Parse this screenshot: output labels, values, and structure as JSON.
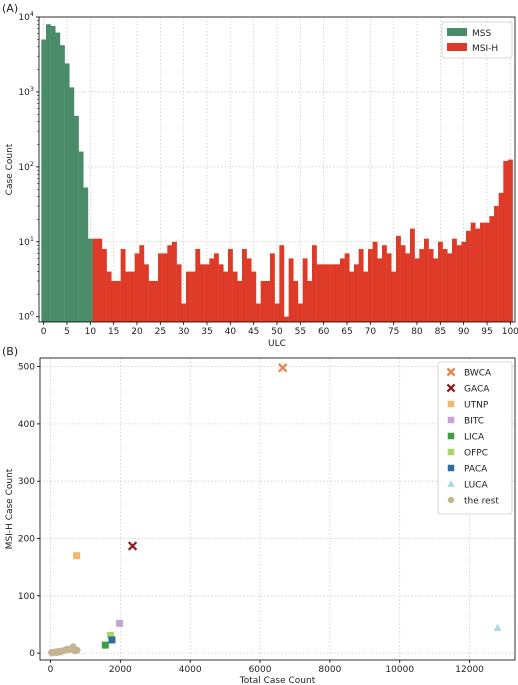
{
  "panels": {
    "a_label": "(A)",
    "b_label": "(B)"
  },
  "colors": {
    "mss": "#4a8c6a",
    "msih": "#dd3a28",
    "grid": "#cccccc"
  },
  "chart_data": [
    {
      "type": "bar",
      "panel": "(A)",
      "xlabel": "ULC",
      "ylabel": "Case Count",
      "yscale": "log",
      "ylim": [
        0.85,
        10000
      ],
      "xlim": [
        -1,
        101
      ],
      "x_ticks": [
        "0",
        "5",
        "10",
        "15",
        "20",
        "25",
        "30",
        "35",
        "40",
        "45",
        "50",
        "55",
        "60",
        "65",
        "70",
        "75",
        "80",
        "85",
        "90",
        "95",
        "100"
      ],
      "y_ticks": [
        "10^0",
        "10^1",
        "10^2",
        "10^3",
        "10^4"
      ],
      "grid": true,
      "legend_position": "top-right",
      "series": [
        {
          "name": "MSS",
          "color": "#4a8c6a",
          "x": [
            0,
            1,
            2,
            3,
            4,
            5,
            6,
            7,
            8,
            9,
            10
          ],
          "values": [
            5000,
            8000,
            7600,
            6200,
            4200,
            2400,
            1150,
            480,
            160,
            53,
            11
          ]
        },
        {
          "name": "MSI-H",
          "color": "#dd3a28",
          "x": [
            11,
            12,
            13,
            14,
            15,
            16,
            17,
            18,
            19,
            20,
            21,
            22,
            23,
            24,
            25,
            26,
            27,
            28,
            29,
            30,
            31,
            32,
            33,
            34,
            35,
            36,
            37,
            38,
            39,
            40,
            41,
            42,
            43,
            44,
            45,
            46,
            47,
            48,
            49,
            50,
            51,
            52,
            53,
            54,
            55,
            56,
            57,
            58,
            59,
            60,
            61,
            62,
            63,
            64,
            65,
            66,
            67,
            68,
            69,
            70,
            71,
            72,
            73,
            74,
            75,
            76,
            77,
            78,
            79,
            80,
            81,
            82,
            83,
            84,
            85,
            86,
            87,
            88,
            89,
            90,
            91,
            92,
            93,
            94,
            95,
            96,
            97,
            98,
            99,
            100
          ],
          "values": [
            11,
            11,
            8,
            4,
            3,
            3,
            8,
            4,
            4,
            7,
            9,
            5,
            3,
            3,
            7,
            7,
            9,
            10,
            5,
            1.5,
            4,
            4,
            8,
            5,
            5,
            6,
            7,
            5,
            4,
            8,
            4,
            3,
            8,
            6,
            4,
            1.5,
            3,
            3,
            7,
            1.5,
            9,
            1,
            6,
            3,
            1.5,
            6,
            3,
            9,
            5,
            5,
            5,
            5,
            5,
            6,
            7,
            4,
            5,
            8,
            4,
            8,
            10,
            6,
            9,
            7,
            4,
            12,
            9,
            7,
            15,
            6,
            8,
            11,
            8,
            6,
            10,
            8,
            7,
            11,
            9,
            10,
            14,
            18,
            15,
            18,
            18,
            22,
            30,
            45,
            120,
            125
          ]
        }
      ]
    },
    {
      "type": "scatter",
      "panel": "(B)",
      "xlabel": "Total Case Count",
      "ylabel": "MSI-H Case Count",
      "xlim": [
        -300,
        13300
      ],
      "ylim": [
        -12,
        515
      ],
      "x_ticks": [
        "0",
        "2000",
        "4000",
        "6000",
        "8000",
        "10000",
        "12000"
      ],
      "y_ticks": [
        "0",
        "100",
        "200",
        "300",
        "400",
        "500"
      ],
      "grid": true,
      "legend_position": "top-right",
      "series": [
        {
          "name": "BWCA",
          "marker": "x",
          "color": "#e8804a",
          "points": [
            [
              6650,
              498
            ]
          ]
        },
        {
          "name": "GACA",
          "marker": "x",
          "color": "#8b1a1a",
          "points": [
            [
              2350,
              187
            ]
          ]
        },
        {
          "name": "UTNP",
          "marker": "square",
          "color": "#f2b96a",
          "points": [
            [
              750,
              170
            ]
          ]
        },
        {
          "name": "BITC",
          "marker": "square",
          "color": "#c5a5d3",
          "points": [
            [
              1980,
              52
            ]
          ]
        },
        {
          "name": "LICA",
          "marker": "square",
          "color": "#3aa043",
          "points": [
            [
              1570,
              14
            ]
          ]
        },
        {
          "name": "OFPC",
          "marker": "square",
          "color": "#a9d76b",
          "points": [
            [
              1720,
              31
            ]
          ]
        },
        {
          "name": "PACA",
          "marker": "square",
          "color": "#2f6c9f",
          "points": [
            [
              1760,
              23
            ]
          ]
        },
        {
          "name": "LUCA",
          "marker": "triangle",
          "color": "#a9d9e6",
          "points": [
            [
              12800,
              44
            ]
          ]
        },
        {
          "name": "the rest",
          "marker": "circle",
          "color": "#c4b48f",
          "points": [
            [
              30,
              1
            ],
            [
              80,
              1
            ],
            [
              130,
              2
            ],
            [
              180,
              1
            ],
            [
              230,
              3
            ],
            [
              290,
              2
            ],
            [
              350,
              4
            ],
            [
              420,
              5
            ],
            [
              480,
              7
            ],
            [
              540,
              6
            ],
            [
              610,
              8
            ],
            [
              650,
              11
            ],
            [
              700,
              4
            ],
            [
              760,
              5
            ]
          ]
        }
      ]
    }
  ]
}
